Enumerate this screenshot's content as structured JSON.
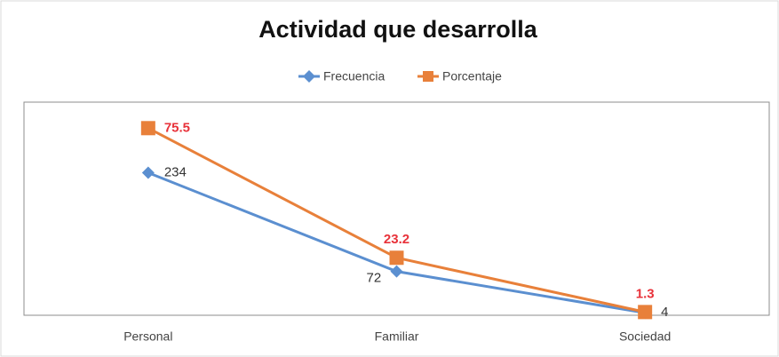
{
  "chart_data": {
    "type": "line",
    "title": "Actividad que desarrolla",
    "categories": [
      "Personal",
      "Familiar",
      "Sociedad"
    ],
    "series": [
      {
        "name": "Frecuencia",
        "color": "#5b8fd0",
        "values": [
          234,
          72,
          4
        ],
        "label_color": "#333333"
      },
      {
        "name": "Porcentaje",
        "color": "#e8803a",
        "values": [
          75.5,
          23.2,
          1.3
        ],
        "axis": "y2",
        "label_color": "#e8323a"
      }
    ],
    "ylim": [
      0,
      350
    ],
    "y2lim": [
      0,
      86
    ],
    "legend": "top"
  }
}
